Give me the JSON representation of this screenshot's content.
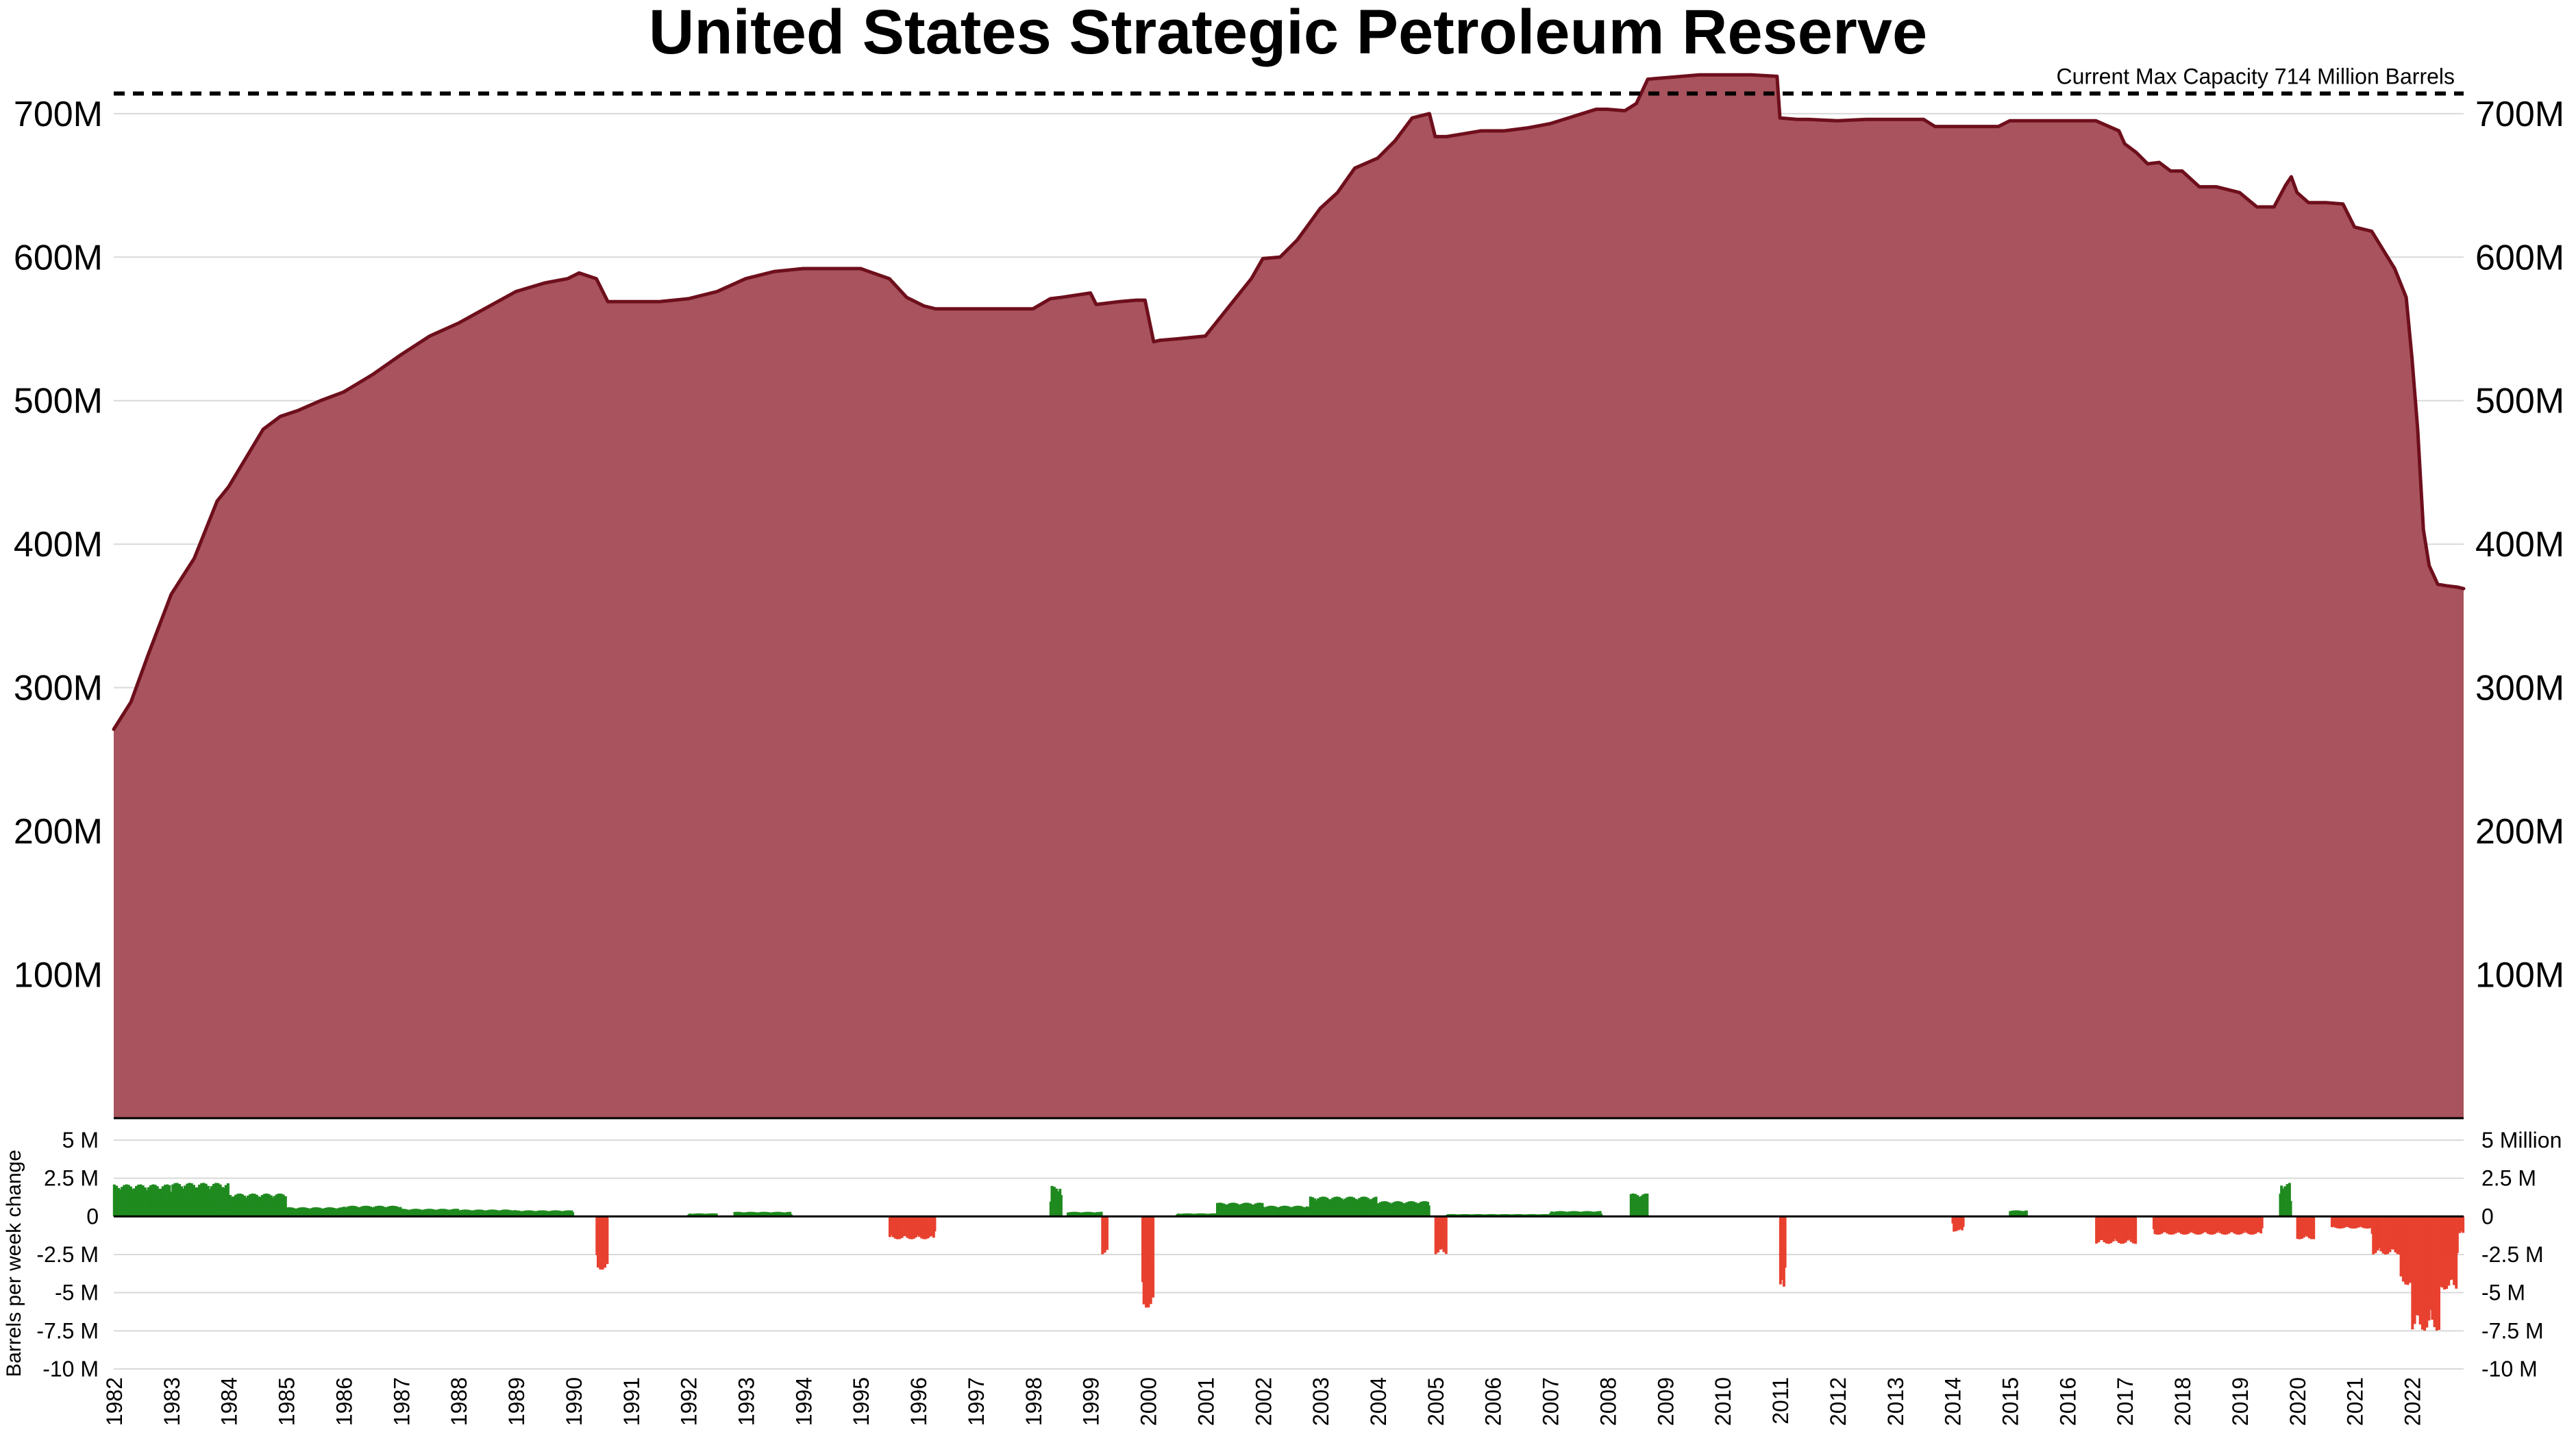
{
  "colors": {
    "area_fill": "#a8535d",
    "area_line": "#6e0f1c",
    "positive_bar": "#1f8a1f",
    "negative_bar": "#e8412f",
    "gridline": "#d9d9d9",
    "capacity_line": "#000000"
  },
  "chart_data": [
    {
      "type": "area",
      "title": "United States Strategic Petroleum Reserve",
      "ylabel": "",
      "ylim": [
        0,
        730000000
      ],
      "y_ticks": [
        100000000,
        200000000,
        300000000,
        400000000,
        500000000,
        600000000,
        700000000
      ],
      "y_tick_labels": [
        "100M",
        "200M",
        "300M",
        "400M",
        "500M",
        "600M",
        "700M"
      ],
      "grid": true,
      "axes": "left and right",
      "annotation": {
        "label": "Current Max Capacity 714 Million Barrels",
        "value": 714000000,
        "style": "dashed"
      },
      "series": [
        {
          "x": [
            1982.0,
            1982.3,
            1982.6,
            1983.0,
            1983.4,
            1983.8,
            1984.0,
            1984.3,
            1984.6,
            1984.9,
            1985.2,
            1985.6,
            1986.0,
            1986.5,
            1987.0,
            1987.5,
            1988.0,
            1988.5,
            1989.0,
            1989.5,
            1989.9,
            1990.1,
            1990.4,
            1990.6,
            1990.8,
            1991.5,
            1992.0,
            1992.5,
            1993.0,
            1993.5,
            1994.0,
            1994.5,
            1995.0,
            1995.5,
            1995.8,
            1996.1,
            1996.3,
            1996.6,
            1997.0,
            1997.5,
            1998.0,
            1998.3,
            1998.5,
            1999.0,
            1999.1,
            1999.5,
            1999.8,
            1999.95,
            2000.1,
            2000.2,
            2000.5,
            2001.0,
            2001.2,
            2001.5,
            2001.8,
            2002.0,
            2002.3,
            2002.6,
            2003.0,
            2003.3,
            2003.6,
            2004.0,
            2004.3,
            2004.6,
            2004.9,
            2005.0,
            2005.2,
            2005.5,
            2005.8,
            2006.2,
            2006.6,
            2007.0,
            2007.4,
            2007.8,
            2008.0,
            2008.3,
            2008.5,
            2008.7,
            2009.0,
            2009.3,
            2009.6,
            2010.0,
            2010.5,
            2010.95,
            2011.0,
            2011.3,
            2011.5,
            2012.0,
            2012.5,
            2013.0,
            2013.5,
            2013.7,
            2014.0,
            2014.5,
            2014.8,
            2015.0,
            2015.5,
            2016.0,
            2016.5,
            2016.9,
            2017.0,
            2017.2,
            2017.4,
            2017.6,
            2017.8,
            2018.0,
            2018.3,
            2018.6,
            2019.0,
            2019.3,
            2019.6,
            2019.8,
            2019.9,
            2020.0,
            2020.2,
            2020.5,
            2020.8,
            2021.0,
            2021.3,
            2021.5,
            2021.7,
            2021.9,
            2022.0,
            2022.1,
            2022.2,
            2022.3,
            2022.45,
            2022.6,
            2022.8,
            2022.9
          ],
          "y": [
            271000000,
            290000000,
            323000000,
            365000000,
            390000000,
            430000000,
            440000000,
            460000000,
            480000000,
            489000000,
            493000000,
            500000000,
            506000000,
            518000000,
            532000000,
            545000000,
            554000000,
            565000000,
            576000000,
            582000000,
            585000000,
            589000000,
            585000000,
            569000000,
            569000000,
            569000000,
            571000000,
            576000000,
            585000000,
            590000000,
            592000000,
            592000000,
            592000000,
            585000000,
            572000000,
            566000000,
            564000000,
            564000000,
            564000000,
            564000000,
            564000000,
            571000000,
            572000000,
            575000000,
            567000000,
            569000000,
            570000000,
            570000000,
            541000000,
            542000000,
            543000000,
            545000000,
            555000000,
            570000000,
            585000000,
            599000000,
            600000000,
            612000000,
            634000000,
            645000000,
            662000000,
            669000000,
            681000000,
            697000000,
            700000000,
            684000000,
            684000000,
            686000000,
            688000000,
            688000000,
            690000000,
            693000000,
            698000000,
            703000000,
            703000000,
            702000000,
            707000000,
            724000000,
            725000000,
            726000000,
            727000000,
            727000000,
            727000000,
            726000000,
            697000000,
            696000000,
            696000000,
            695000000,
            696000000,
            696000000,
            696000000,
            691000000,
            691000000,
            691000000,
            691000000,
            695000000,
            695000000,
            695000000,
            695000000,
            688000000,
            679000000,
            673000000,
            665000000,
            666000000,
            660000000,
            660000000,
            649000000,
            649000000,
            645000000,
            635000000,
            635000000,
            650000000,
            656000000,
            645000000,
            638000000,
            638000000,
            637000000,
            621000000,
            618000000,
            605000000,
            592000000,
            572000000,
            530000000,
            480000000,
            410000000,
            385000000,
            372000000,
            371000000,
            370000000,
            369000000
          ]
        }
      ]
    },
    {
      "type": "bar",
      "ylabel": "Barrels per week change",
      "ylim": [
        -10000000,
        5000000
      ],
      "y_ticks": [
        5000000,
        2500000,
        0,
        -2500000,
        -5000000,
        -7500000,
        -10000000
      ],
      "y_tick_labels_left": [
        "5 M",
        "2.5 M",
        "0",
        "-2.5 M",
        "-5 M",
        "-7.5 M",
        "-10 M"
      ],
      "y_tick_labels_right": [
        "5 Million",
        "2.5 M",
        "0",
        "-2.5 M",
        "-5 M",
        "-7.5 M",
        "-10 M"
      ],
      "x_tick_labels": [
        "1982",
        "1983",
        "1984",
        "1985",
        "1986",
        "1987",
        "1988",
        "1989",
        "1990",
        "1991",
        "1992",
        "1993",
        "1994",
        "1995",
        "1996",
        "1997",
        "1998",
        "1999",
        "2000",
        "2001",
        "2002",
        "2003",
        "2004",
        "2005",
        "2006",
        "2007",
        "2008",
        "2009",
        "2010",
        "2011",
        "2012",
        "2013",
        "2014",
        "2015",
        "2016",
        "2017",
        "2018",
        "2019",
        "2020",
        "2021",
        "2022"
      ],
      "note": "weekly bars; green for injections, red for withdrawals",
      "segments": [
        {
          "x0": 1982.0,
          "x1": 1983.0,
          "y": 2100000
        },
        {
          "x0": 1983.0,
          "x1": 1984.0,
          "y": 2200000
        },
        {
          "x0": 1984.0,
          "x1": 1985.0,
          "y": 1500000
        },
        {
          "x0": 1985.0,
          "x1": 1986.0,
          "y": 600000
        },
        {
          "x0": 1986.0,
          "x1": 1987.0,
          "y": 700000
        },
        {
          "x0": 1987.0,
          "x1": 1988.0,
          "y": 500000
        },
        {
          "x0": 1988.0,
          "x1": 1989.0,
          "y": 450000
        },
        {
          "x0": 1989.0,
          "x1": 1990.0,
          "y": 400000
        },
        {
          "x0": 1990.4,
          "x1": 1990.6,
          "y": -3500000
        },
        {
          "x0": 1992.0,
          "x1": 1992.5,
          "y": 200000
        },
        {
          "x0": 1992.8,
          "x1": 1993.8,
          "y": 300000
        },
        {
          "x0": 1995.5,
          "x1": 1996.3,
          "y": -1500000
        },
        {
          "x0": 1998.3,
          "x1": 1998.5,
          "y": 2000000
        },
        {
          "x0": 1998.6,
          "x1": 1999.2,
          "y": 300000
        },
        {
          "x0": 1999.2,
          "x1": 1999.3,
          "y": -2500000
        },
        {
          "x0": 1999.9,
          "x1": 2000.1,
          "y": -6000000
        },
        {
          "x0": 2000.5,
          "x1": 2001.2,
          "y": 200000
        },
        {
          "x0": 2001.2,
          "x1": 2002.0,
          "y": 900000
        },
        {
          "x0": 2002.0,
          "x1": 2002.8,
          "y": 700000
        },
        {
          "x0": 2002.8,
          "x1": 2004.0,
          "y": 1300000
        },
        {
          "x0": 2004.0,
          "x1": 2004.9,
          "y": 1000000
        },
        {
          "x0": 2005.0,
          "x1": 2005.2,
          "y": -2500000
        },
        {
          "x0": 2005.2,
          "x1": 2007.0,
          "y": 150000
        },
        {
          "x0": 2007.0,
          "x1": 2007.9,
          "y": 350000
        },
        {
          "x0": 2008.4,
          "x1": 2008.7,
          "y": 1500000
        },
        {
          "x0": 2011.0,
          "x1": 2011.1,
          "y": -5000000
        },
        {
          "x0": 2014.0,
          "x1": 2014.2,
          "y": -1000000
        },
        {
          "x0": 2015.0,
          "x1": 2015.3,
          "y": 400000
        },
        {
          "x0": 2016.5,
          "x1": 2017.2,
          "y": -1800000
        },
        {
          "x0": 2017.5,
          "x1": 2019.4,
          "y": -1200000
        },
        {
          "x0": 2019.7,
          "x1": 2019.9,
          "y": 2200000
        },
        {
          "x0": 2020.0,
          "x1": 2020.3,
          "y": -1500000
        },
        {
          "x0": 2020.6,
          "x1": 2021.3,
          "y": -800000
        },
        {
          "x0": 2021.3,
          "x1": 2021.8,
          "y": -2500000
        },
        {
          "x0": 2021.8,
          "x1": 2022.0,
          "y": -4500000
        },
        {
          "x0": 2022.0,
          "x1": 2022.5,
          "y": -7500000
        },
        {
          "x0": 2022.5,
          "x1": 2022.8,
          "y": -4800000
        },
        {
          "x0": 2022.8,
          "x1": 2022.9,
          "y": -1200000
        }
      ]
    }
  ]
}
